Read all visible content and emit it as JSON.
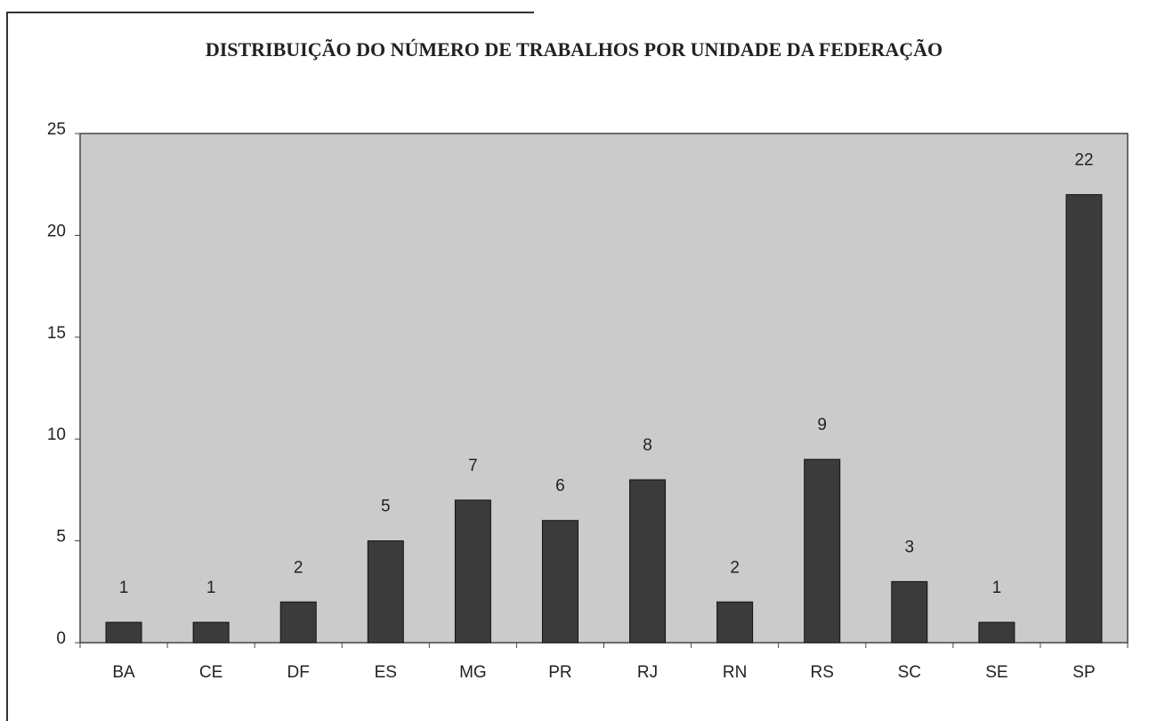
{
  "chart_data": {
    "type": "bar",
    "title": "DISTRIBUIÇÃO DO NÚMERO DE TRABALHOS POR UNIDADE DA FEDERAÇÃO",
    "categories": [
      "BA",
      "CE",
      "DF",
      "ES",
      "MG",
      "PR",
      "RJ",
      "RN",
      "RS",
      "SC",
      "SE",
      "SP"
    ],
    "values": [
      1,
      1,
      2,
      5,
      7,
      6,
      8,
      2,
      9,
      3,
      1,
      22
    ],
    "color": "#3b3b3b",
    "ylim": [
      0,
      25
    ],
    "yticks": [
      0,
      5,
      10,
      15,
      20,
      25
    ],
    "grid": false
  }
}
